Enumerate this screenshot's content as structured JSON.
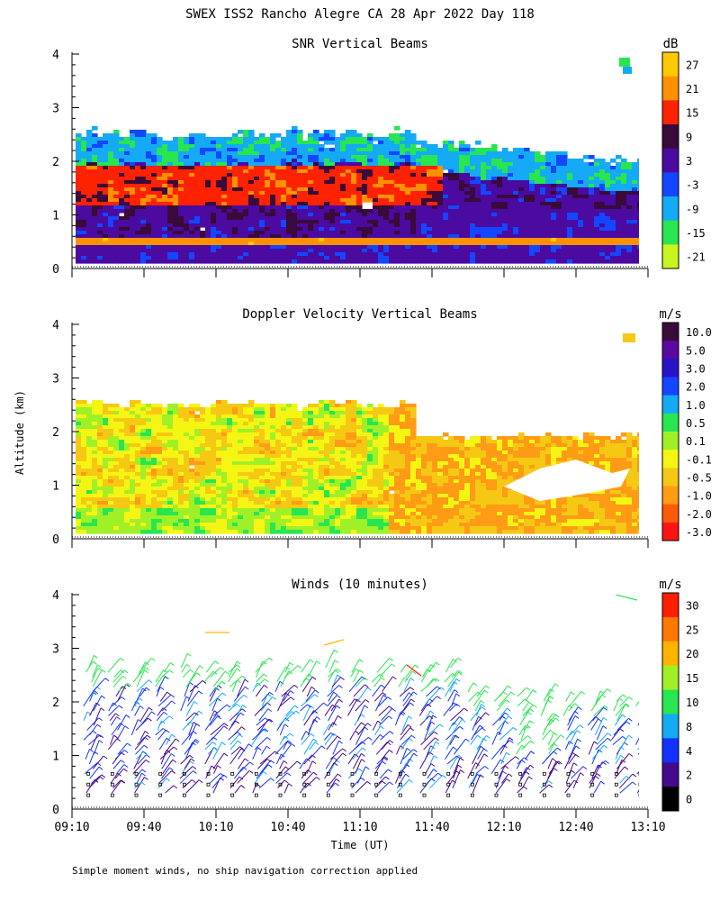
{
  "title": "SWEX ISS2 Rancho Alegre CA  28 Apr 2022 Day 118",
  "footnote": "Simple moment winds, no ship navigation correction applied",
  "chart_data": [
    {
      "type": "heatmap",
      "title": "SNR Vertical Beams",
      "xlabel": "",
      "ylabel": "",
      "ylim": [
        0,
        4
      ],
      "yticks": [
        "0",
        "1",
        "2",
        "3",
        "4"
      ],
      "colorbar": {
        "unit": "dB",
        "labels": [
          "27",
          "21",
          "15",
          "9",
          "3",
          "-3",
          "-9",
          "-15",
          "-21"
        ],
        "colors": [
          "#ffc800",
          "#ff9100",
          "#ff2200",
          "#3a0a3a",
          "#4b0aa0",
          "#1446ff",
          "#14aaf5",
          "#28e650",
          "#c8f520"
        ]
      }
    },
    {
      "type": "heatmap",
      "title": "Doppler Velocity Vertical Beams",
      "xlabel": "",
      "ylabel": "Altitude (km)",
      "ylim": [
        0,
        4
      ],
      "yticks": [
        "0",
        "1",
        "2",
        "3",
        "4"
      ],
      "colorbar": {
        "unit": "m/s",
        "labels": [
          "10.0",
          "5.0",
          "3.0",
          "2.0",
          "1.0",
          "0.5",
          "0.1",
          "-0.1",
          "-0.5",
          "-1.0",
          "-2.0",
          "-3.0"
        ],
        "colors": [
          "#3a0a3a",
          "#5a0aa0",
          "#2814c8",
          "#1446ff",
          "#14aaf5",
          "#28e650",
          "#a0f028",
          "#f5f514",
          "#f5c814",
          "#ff9b14",
          "#ff5a0a",
          "#ff1414"
        ]
      }
    },
    {
      "type": "scatter",
      "title": "Winds (10 minutes)",
      "xlabel": "Time (UT)",
      "ylabel": "",
      "ylim": [
        0,
        4
      ],
      "yticks": [
        "0",
        "1",
        "2",
        "3",
        "4"
      ],
      "xticks": [
        "09:10",
        "09:40",
        "10:10",
        "10:40",
        "11:10",
        "11:40",
        "12:10",
        "12:40",
        "13:10"
      ],
      "colorbar": {
        "unit": "m/s",
        "labels": [
          "30",
          "25",
          "20",
          "15",
          "10",
          "8",
          "4",
          "2",
          "0"
        ],
        "colors": [
          "#ff1e00",
          "#ff7800",
          "#ffb400",
          "#a0f028",
          "#28e650",
          "#14aaf5",
          "#1432ff",
          "#46088c",
          "#000000"
        ]
      }
    }
  ]
}
